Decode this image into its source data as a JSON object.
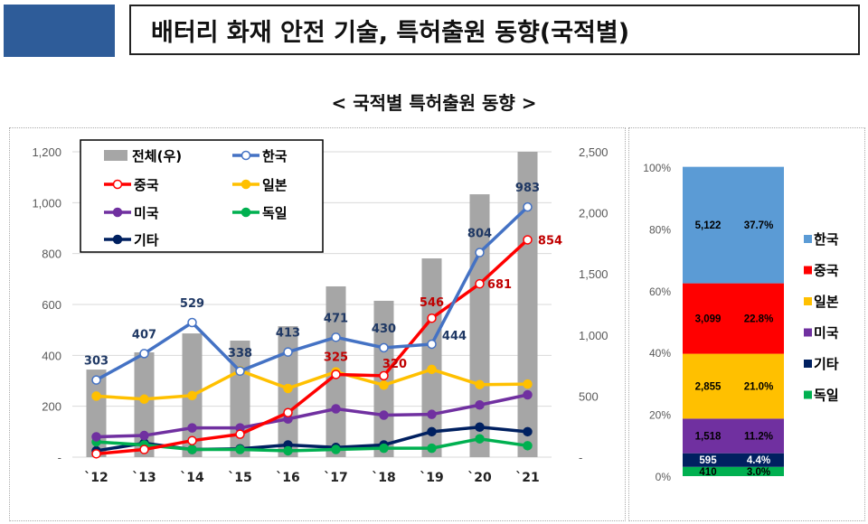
{
  "header": {
    "title": "배터리 화재 안전 기술, 특허출원 동향(국적별)"
  },
  "subtitle": "< 국적별 특허출원 동향 >",
  "chart_data": [
    {
      "type": "bar+line",
      "categories": [
        "`12",
        "`13",
        "`14",
        "`15",
        "`16",
        "`17",
        "`18",
        "`19",
        "`20",
        "`21"
      ],
      "ylim_left": [
        0,
        1200
      ],
      "yticks_left": [
        "-",
        "200",
        "400",
        "600",
        "800",
        "1,000",
        "1,200"
      ],
      "ylim_right": [
        0,
        2500
      ],
      "yticks_right": [
        "-",
        "500",
        "1,000",
        "1,500",
        "2,000",
        "2,500"
      ],
      "bar": {
        "name": "전체(우)",
        "color": "#a6a6a6",
        "values": [
          717,
          858,
          1013,
          954,
          1072,
          1398,
          1280,
          1627,
          2152,
          2500
        ]
      },
      "series": [
        {
          "name": "한국",
          "color": "#4472c4",
          "hollow": true,
          "values": [
            303,
            407,
            529,
            338,
            413,
            471,
            430,
            444,
            804,
            983
          ],
          "labels": [
            "303",
            "407",
            "529",
            "338",
            "413",
            "471",
            "430",
            "444",
            "804",
            "983"
          ],
          "label_color": "#1f3864"
        },
        {
          "name": "중국",
          "color": "#ff0000",
          "hollow": true,
          "values": [
            13,
            30,
            65,
            90,
            175,
            325,
            320,
            546,
            681,
            854
          ],
          "labels": [
            "",
            "",
            "",
            "",
            "",
            "325",
            "320",
            "546",
            "681",
            "854"
          ],
          "label_color": "#c00000"
        },
        {
          "name": "일본",
          "color": "#ffc000",
          "values": [
            240,
            228,
            242,
            340,
            270,
            335,
            283,
            345,
            285,
            287
          ]
        },
        {
          "name": "미국",
          "color": "#7030a0",
          "values": [
            80,
            85,
            115,
            115,
            150,
            190,
            165,
            168,
            205,
            245
          ]
        },
        {
          "name": "독일",
          "color": "#00b050",
          "values": [
            60,
            48,
            30,
            30,
            25,
            30,
            35,
            35,
            72,
            45
          ]
        },
        {
          "name": "기타",
          "color": "#002060",
          "values": [
            25,
            55,
            30,
            33,
            48,
            38,
            48,
            100,
            118,
            100
          ]
        }
      ],
      "legend": "top-left"
    },
    {
      "type": "stacked-bar-100",
      "yticks": [
        "0%",
        "20%",
        "40%",
        "60%",
        "80%",
        "100%"
      ],
      "segments": [
        {
          "name": "독일",
          "color": "#00b050",
          "count": "410",
          "pct": "3.0%",
          "value": 3.0,
          "text_color": "#000"
        },
        {
          "name": "기타",
          "color": "#002060",
          "count": "595",
          "pct": "4.4%",
          "value": 4.4,
          "text_color": "#fff"
        },
        {
          "name": "미국",
          "color": "#7030a0",
          "count": "1,518",
          "pct": "11.2%",
          "value": 11.2,
          "text_color": "#000"
        },
        {
          "name": "일본",
          "color": "#ffc000",
          "count": "2,855",
          "pct": "21.0%",
          "value": 21.0,
          "text_color": "#000"
        },
        {
          "name": "중국",
          "color": "#ff0000",
          "count": "3,099",
          "pct": "22.8%",
          "value": 22.8,
          "text_color": "#000"
        },
        {
          "name": "한국",
          "color": "#5b9bd5",
          "count": "5,122",
          "pct": "37.7%",
          "value": 37.7,
          "text_color": "#000"
        }
      ],
      "legend_order": [
        "한국",
        "중국",
        "일본",
        "미국",
        "기타",
        "독일"
      ]
    }
  ]
}
